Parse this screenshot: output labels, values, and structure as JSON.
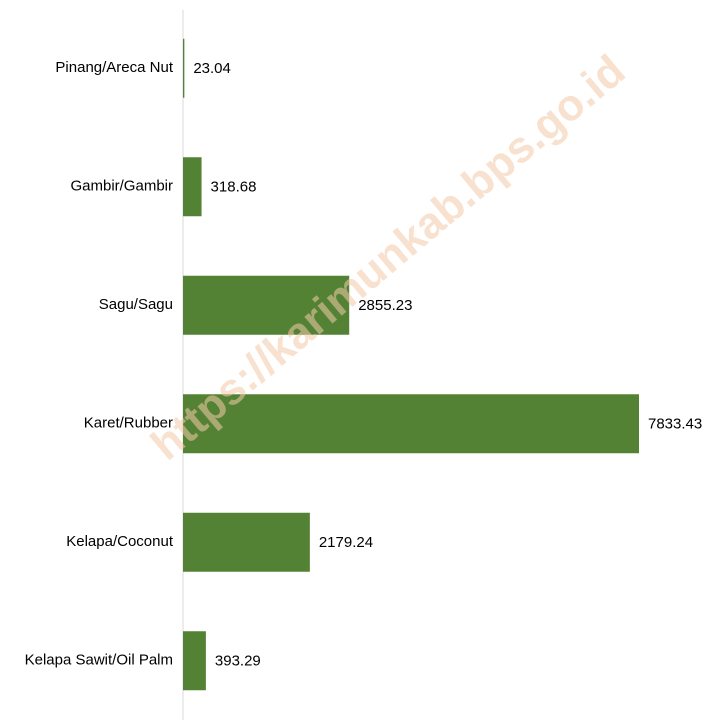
{
  "chart_data": {
    "type": "bar",
    "orientation": "horizontal",
    "categories": [
      "Pinang/Areca Nut",
      "Gambir/Gambir",
      "Sagu/Sagu",
      "Karet/Rubber",
      "Kelapa/Coconut",
      "Kelapa Sawit/Oil Palm"
    ],
    "values": [
      23.04,
      318.68,
      2855.23,
      7833.43,
      2179.24,
      393.29
    ],
    "color": "#548235",
    "watermark": "https://karimunkab.bps.go.id"
  }
}
